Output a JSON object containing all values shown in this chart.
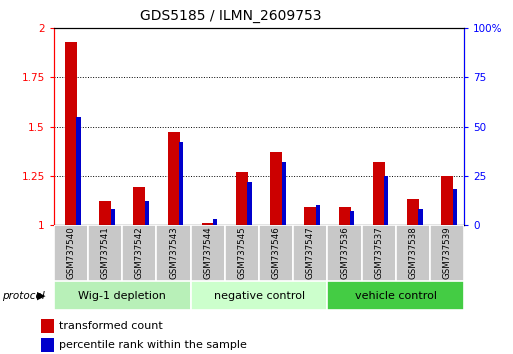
{
  "title": "GDS5185 / ILMN_2609753",
  "samples": [
    "GSM737540",
    "GSM737541",
    "GSM737542",
    "GSM737543",
    "GSM737544",
    "GSM737545",
    "GSM737546",
    "GSM737547",
    "GSM737536",
    "GSM737537",
    "GSM737538",
    "GSM737539"
  ],
  "red_values": [
    1.93,
    1.12,
    1.19,
    1.47,
    1.01,
    1.27,
    1.37,
    1.09,
    1.09,
    1.32,
    1.13,
    1.25
  ],
  "blue_values_pct": [
    55,
    8,
    12,
    42,
    3,
    22,
    32,
    10,
    7,
    25,
    8,
    18
  ],
  "groups": [
    {
      "label": "Wig-1 depletion",
      "start": 0,
      "end": 4
    },
    {
      "label": "negative control",
      "start": 4,
      "end": 8
    },
    {
      "label": "vehicle control",
      "start": 8,
      "end": 12
    }
  ],
  "group_colors": [
    "#b8f0b8",
    "#ccffcc",
    "#44cc44"
  ],
  "ylim_left": [
    1.0,
    2.0
  ],
  "ylim_right": [
    0,
    100
  ],
  "yticks_left": [
    1.0,
    1.25,
    1.5,
    1.75,
    2.0
  ],
  "yticks_right": [
    0,
    25,
    50,
    75,
    100
  ],
  "ytick_labels_left": [
    "1",
    "1.25",
    "1.5",
    "1.75",
    "2"
  ],
  "ytick_labels_right": [
    "0",
    "25",
    "50",
    "75",
    "100%"
  ],
  "red_color": "#cc0000",
  "blue_color": "#0000cc",
  "bar_bg_color": "#c8c8c8",
  "title_fontsize": 10,
  "tick_fontsize": 7.5,
  "label_fontsize": 8
}
